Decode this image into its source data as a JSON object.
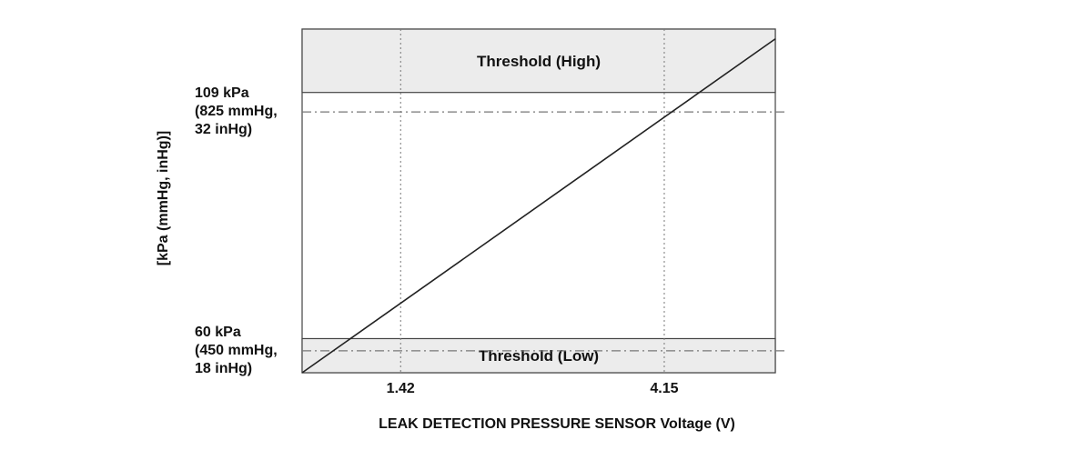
{
  "chart_data": {
    "type": "line",
    "xlabel": "LEAK DETECTION PRESSURE SENSOR Voltage (V)",
    "ylabel": "[kPa (mmHg, inHg)]",
    "x_ticks": [
      {
        "value": 1.42,
        "label": "1.42"
      },
      {
        "value": 4.15,
        "label": "4.15"
      }
    ],
    "y_ticks": [
      {
        "value": 109,
        "lines": [
          "109 kPa",
          "(825 mmHg,",
          "32 inHg)"
        ]
      },
      {
        "value": 60,
        "lines": [
          "60 kPa",
          "(450 mmHg,",
          "18 inHg)"
        ]
      }
    ],
    "xlim": [
      0.4,
      5.3
    ],
    "ylim": [
      55.5,
      126
    ],
    "series": [
      {
        "values": [
          {
            "x": 0.4,
            "y": 55.5
          },
          {
            "x": 5.3,
            "y": 124
          }
        ]
      }
    ],
    "bands": [
      {
        "label": "Threshold (High)",
        "y_from": 113,
        "y_to": 126
      },
      {
        "label": "Threshold (Low)",
        "y_from": 55.5,
        "y_to": 62.5
      }
    ],
    "colors": {
      "line": "#222222",
      "band_fill": "#ececec",
      "band_stroke": "#444444",
      "reference_line": "#777777",
      "frame": "#444444"
    },
    "grid": false
  }
}
